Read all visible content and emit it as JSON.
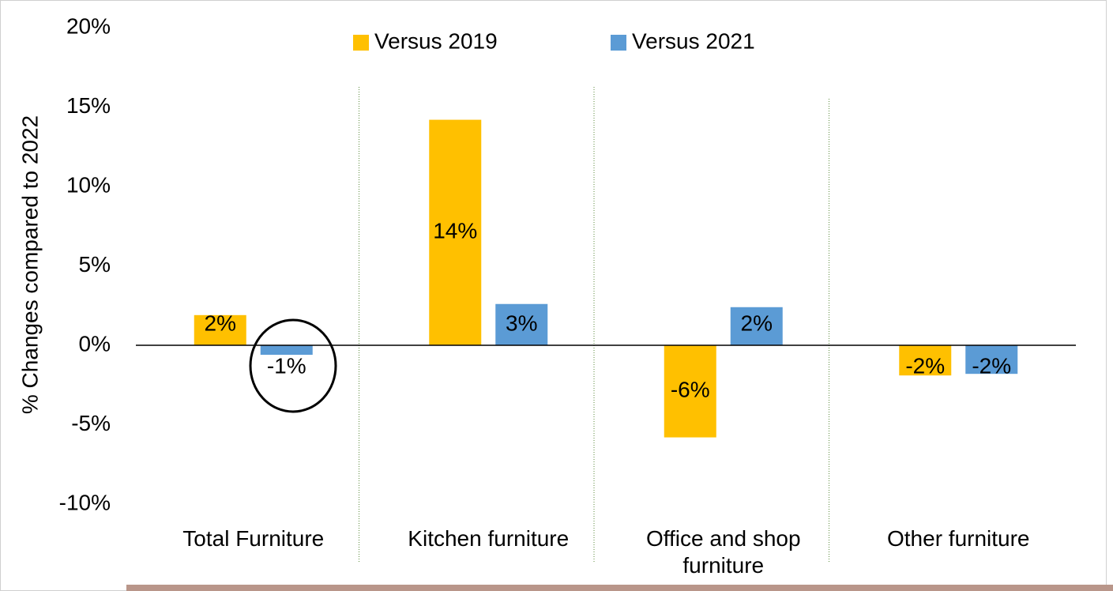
{
  "chart_data": {
    "type": "bar",
    "y_label": "% Changes compared to  2022",
    "categories": [
      "Total Furniture",
      "Kitchen furniture",
      "Office and shop furniture",
      "Other furniture"
    ],
    "series": [
      {
        "name": "Versus 2019",
        "color": "#FFC000",
        "values": [
          1.9,
          14.2,
          -5.8,
          -1.9
        ],
        "value_labels": [
          "2%",
          "14%",
          "-6%",
          "-2%"
        ]
      },
      {
        "name": "Versus 2021",
        "color": "#5B9BD5",
        "values": [
          -0.6,
          2.6,
          2.4,
          -1.8
        ],
        "value_labels": [
          "-1%",
          "3%",
          "2%",
          "-2%"
        ]
      }
    ],
    "ylim": [
      -10,
      20
    ],
    "yticks": [
      {
        "value": -10,
        "label": "-10%"
      },
      {
        "value": -5,
        "label": "-5%"
      },
      {
        "value": 0,
        "label": "0%"
      },
      {
        "value": 5,
        "label": "5%"
      },
      {
        "value": 10,
        "label": "10%"
      },
      {
        "value": 15,
        "label": "15%"
      },
      {
        "value": 20,
        "label": "20%"
      }
    ],
    "grid": false,
    "legend": "top"
  }
}
